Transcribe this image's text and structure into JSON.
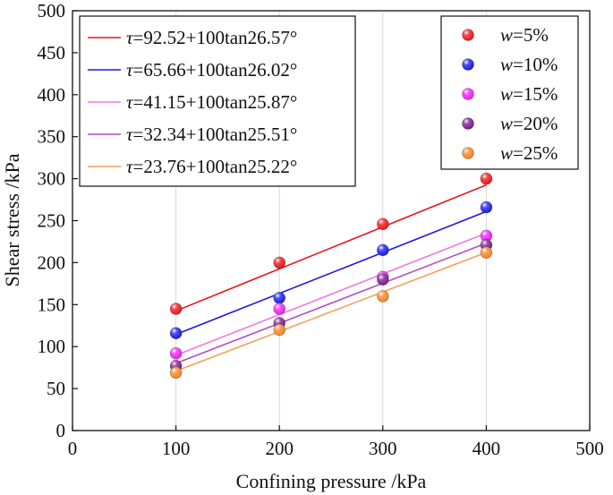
{
  "chart_data": {
    "type": "scatter",
    "xlabel": "Confining pressure /kPa",
    "ylabel": "Shear stress /kPa",
    "xlim": [
      0,
      500
    ],
    "ylim": [
      0,
      500
    ],
    "xticks": [
      "0",
      "100",
      "200",
      "300",
      "400",
      "500"
    ],
    "yticks": [
      "0",
      "50",
      "100",
      "150",
      "200",
      "250",
      "300",
      "350",
      "400",
      "450",
      "500"
    ],
    "grid": "vertical",
    "x": [
      100,
      200,
      300,
      400
    ],
    "series": [
      {
        "name": "w=5%",
        "symbol": "w",
        "value_label": "=5%",
        "color": "#e8141b",
        "values": [
          145,
          200,
          246,
          300
        ],
        "fit": {
          "label": "=92.52+100tan26.57°",
          "intercept": 92.52,
          "angle": 26.57
        }
      },
      {
        "name": "w=10%",
        "symbol": "w",
        "value_label": "=10%",
        "color": "#1a1ae6",
        "values": [
          116,
          158,
          215,
          266
        ],
        "fit": {
          "label": "=65.66+100tan26.02°",
          "intercept": 65.66,
          "angle": 26.02
        }
      },
      {
        "name": "w=15%",
        "symbol": "w",
        "value_label": "=15%",
        "color": "#f01ef0",
        "values": [
          92,
          145,
          183,
          232
        ],
        "fit": {
          "label": "=41.15+100tan25.87°",
          "intercept": 41.15,
          "angle": 25.87
        }
      },
      {
        "name": "w=20%",
        "symbol": "w",
        "value_label": "=20%",
        "color": "#7a1a8c",
        "values": [
          77,
          128,
          180,
          221
        ],
        "fit": {
          "label": "=32.34+100tan25.51°",
          "intercept": 32.34,
          "angle": 25.51
        }
      },
      {
        "name": "w=25%",
        "symbol": "w",
        "value_label": "=25%",
        "color": "#f5821f",
        "values": [
          69,
          120,
          160,
          212
        ],
        "fit": {
          "label": "=23.76+100tan25.22°",
          "intercept": 23.76,
          "angle": 25.22
        }
      }
    ],
    "fit_symbol": "τ",
    "fit_line_colors": [
      "#e8141b",
      "#1a1ae6",
      "#f07ae0",
      "#b04ec8",
      "#f5a05a"
    ],
    "legend_fit_placement": "top-left",
    "legend_points_placement": "top-right"
  }
}
